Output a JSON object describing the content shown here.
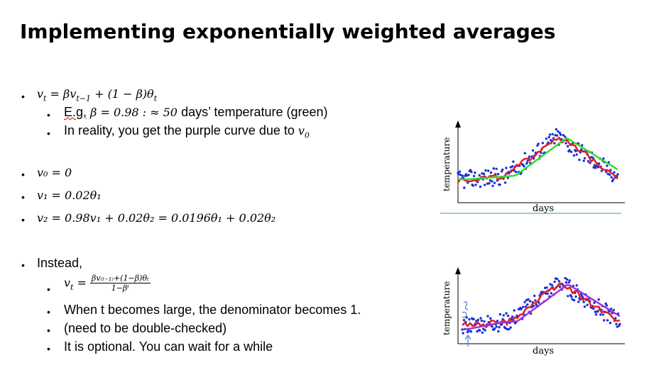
{
  "title": "Implementing exponentially weighted averages",
  "bullets": {
    "b1_math": "v",
    "b1_sub": "t",
    "b1_rest": " = βv",
    "b1_sub2": "t−1",
    "b1_rest2": " + (1 − β)θ",
    "b1_sub3": "t",
    "s1_eg": "E.g,",
    "s1_math": " β = 0.98 : ≈ 50 ",
    "s1_text": "days’ temperature (green)",
    "s2_text": "In reality, you get the purple curve due to ",
    "s2_math": "v",
    "s2_sub": "0",
    "b2": "v₀ = 0",
    "b3": "v₁ = 0.02θ₁",
    "b4": "v₂ = 0.98v₁ + 0.02θ₂ = 0.0196θ₁ + 0.02θ₂",
    "b5": "Instead,",
    "s3_lhs": "v",
    "s3_sub": "t",
    "s3_eq": " = ",
    "s3_num": "βv₍ₜ₋₁₎+(1−β)θₜ",
    "s3_den": "1−βᵗ",
    "s4": "When t becomes large, the denominator becomes 1.",
    "s5": "(need to be double-checked)",
    "s6": "It is optional. You can wait for a while"
  },
  "chart_top": {
    "ylabel": "temperature",
    "xlabel": "days",
    "series_colors": {
      "data": "#1a2fd6",
      "ema": "#e02020",
      "green": "#33dd33"
    }
  },
  "chart_bottom": {
    "ylabel": "temperature",
    "xlabel": "days",
    "series_colors": {
      "data": "#1a2fd6",
      "ema": "#e02020",
      "purple": "#9933dd"
    }
  }
}
